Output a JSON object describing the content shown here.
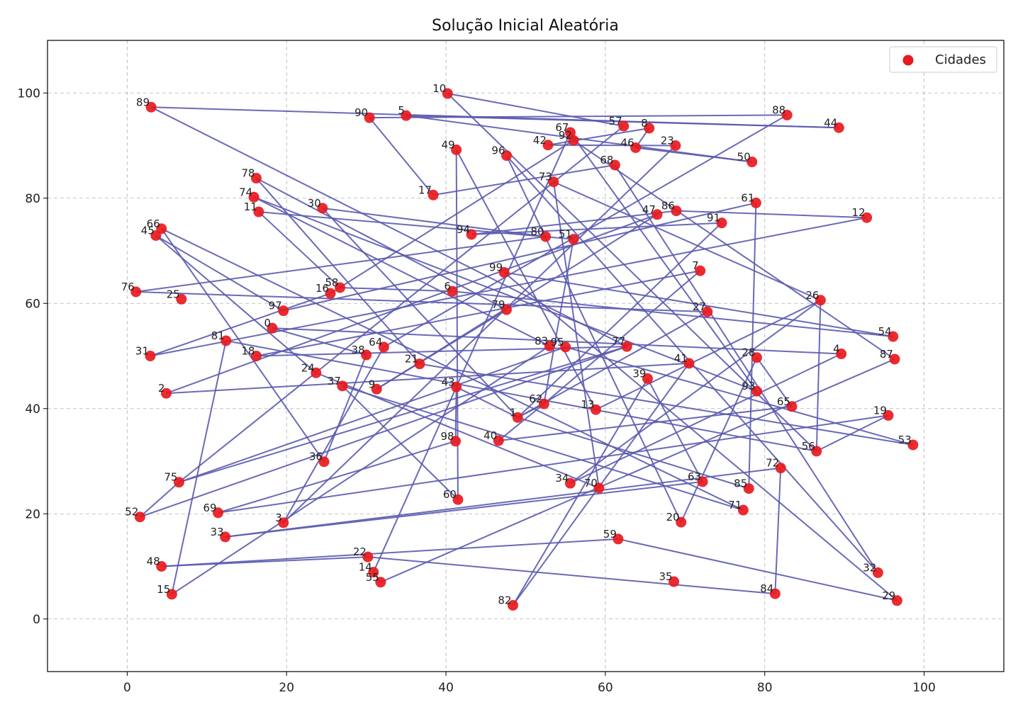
{
  "chart_data": {
    "type": "scatter",
    "title": "Solução Inicial Aleatória",
    "xlabel": "",
    "ylabel": "",
    "xlim": [
      -10,
      110
    ],
    "ylim": [
      -10,
      110
    ],
    "x_ticks": [
      "0",
      "20",
      "40",
      "60",
      "80",
      "100"
    ],
    "y_ticks": [
      "0",
      "20",
      "40",
      "60",
      "80",
      "100"
    ],
    "grid": true,
    "legend": {
      "position": "top-right",
      "entries": [
        "Cidades"
      ]
    },
    "colors": {
      "points": "#e8191e",
      "route": "#5a5aaf"
    },
    "series": [
      {
        "name": "Cidades",
        "points": [
          {
            "label": "0",
            "x": 18.2,
            "y": 55.3
          },
          {
            "label": "1",
            "x": 49.0,
            "y": 38.3
          },
          {
            "label": "2",
            "x": 4.9,
            "y": 42.9
          },
          {
            "label": "3",
            "x": 19.6,
            "y": 18.3
          },
          {
            "label": "4",
            "x": 89.6,
            "y": 50.4
          },
          {
            "label": "5",
            "x": 35.0,
            "y": 95.7
          },
          {
            "label": "6",
            "x": 40.8,
            "y": 62.3
          },
          {
            "label": "7",
            "x": 71.9,
            "y": 66.2
          },
          {
            "label": "8",
            "x": 65.5,
            "y": 93.3
          },
          {
            "label": "9",
            "x": 31.3,
            "y": 43.7
          },
          {
            "label": "10",
            "x": 40.2,
            "y": 99.9
          },
          {
            "label": "11",
            "x": 16.5,
            "y": 77.4
          },
          {
            "label": "12",
            "x": 92.8,
            "y": 76.3
          },
          {
            "label": "13",
            "x": 58.8,
            "y": 39.8
          },
          {
            "label": "14",
            "x": 30.9,
            "y": 8.9
          },
          {
            "label": "15",
            "x": 5.6,
            "y": 4.7
          },
          {
            "label": "16",
            "x": 25.5,
            "y": 61.9
          },
          {
            "label": "17",
            "x": 38.4,
            "y": 80.6
          },
          {
            "label": "18",
            "x": 16.2,
            "y": 50.0
          },
          {
            "label": "19",
            "x": 95.5,
            "y": 38.7
          },
          {
            "label": "20",
            "x": 69.5,
            "y": 18.4
          },
          {
            "label": "21",
            "x": 36.7,
            "y": 48.5
          },
          {
            "label": "22",
            "x": 30.2,
            "y": 11.8
          },
          {
            "label": "23",
            "x": 68.8,
            "y": 90.0
          },
          {
            "label": "24",
            "x": 23.7,
            "y": 46.8
          },
          {
            "label": "25",
            "x": 6.8,
            "y": 60.8
          },
          {
            "label": "26",
            "x": 87.0,
            "y": 60.6
          },
          {
            "label": "27",
            "x": 72.8,
            "y": 58.4
          },
          {
            "label": "28",
            "x": 79.0,
            "y": 49.7
          },
          {
            "label": "29",
            "x": 96.6,
            "y": 3.5
          },
          {
            "label": "30",
            "x": 24.5,
            "y": 78.1
          },
          {
            "label": "31",
            "x": 2.9,
            "y": 50.0
          },
          {
            "label": "32",
            "x": 94.2,
            "y": 8.8
          },
          {
            "label": "33",
            "x": 12.3,
            "y": 15.6
          },
          {
            "label": "34",
            "x": 55.6,
            "y": 25.8
          },
          {
            "label": "35",
            "x": 68.6,
            "y": 7.1
          },
          {
            "label": "36",
            "x": 24.7,
            "y": 29.9
          },
          {
            "label": "37",
            "x": 27.0,
            "y": 44.3
          },
          {
            "label": "38",
            "x": 30.0,
            "y": 50.2
          },
          {
            "label": "39",
            "x": 65.3,
            "y": 45.7
          },
          {
            "label": "40",
            "x": 46.6,
            "y": 33.9
          },
          {
            "label": "41",
            "x": 70.5,
            "y": 48.6
          },
          {
            "label": "42",
            "x": 52.8,
            "y": 90.1
          },
          {
            "label": "43",
            "x": 41.3,
            "y": 44.1
          },
          {
            "label": "44",
            "x": 89.3,
            "y": 93.4
          },
          {
            "label": "45",
            "x": 3.6,
            "y": 72.9
          },
          {
            "label": "46",
            "x": 63.8,
            "y": 89.6
          },
          {
            "label": "47",
            "x": 66.5,
            "y": 76.9
          },
          {
            "label": "48",
            "x": 4.3,
            "y": 10.0
          },
          {
            "label": "49",
            "x": 41.3,
            "y": 89.2
          },
          {
            "label": "50",
            "x": 78.4,
            "y": 86.9
          },
          {
            "label": "51",
            "x": 56.0,
            "y": 72.2
          },
          {
            "label": "52",
            "x": 1.6,
            "y": 19.4
          },
          {
            "label": "53",
            "x": 98.6,
            "y": 33.1
          },
          {
            "label": "54",
            "x": 96.1,
            "y": 53.7
          },
          {
            "label": "55",
            "x": 31.8,
            "y": 7.0
          },
          {
            "label": "56",
            "x": 86.5,
            "y": 31.9
          },
          {
            "label": "57",
            "x": 62.3,
            "y": 93.7
          },
          {
            "label": "58",
            "x": 26.7,
            "y": 63.0
          },
          {
            "label": "59",
            "x": 61.6,
            "y": 15.2
          },
          {
            "label": "60",
            "x": 41.5,
            "y": 22.7
          },
          {
            "label": "61",
            "x": 78.9,
            "y": 79.1
          },
          {
            "label": "62",
            "x": 52.3,
            "y": 40.9
          },
          {
            "label": "63",
            "x": 72.2,
            "y": 26.1
          },
          {
            "label": "64",
            "x": 32.2,
            "y": 51.7
          },
          {
            "label": "65",
            "x": 83.4,
            "y": 40.4
          },
          {
            "label": "66",
            "x": 4.3,
            "y": 74.2
          },
          {
            "label": "67",
            "x": 55.6,
            "y": 92.5
          },
          {
            "label": "68",
            "x": 61.2,
            "y": 86.3
          },
          {
            "label": "69",
            "x": 11.4,
            "y": 20.2
          },
          {
            "label": "70",
            "x": 59.2,
            "y": 24.9
          },
          {
            "label": "71",
            "x": 77.3,
            "y": 20.7
          },
          {
            "label": "72",
            "x": 82.0,
            "y": 28.7
          },
          {
            "label": "73",
            "x": 53.5,
            "y": 83.1
          },
          {
            "label": "74",
            "x": 15.9,
            "y": 80.2
          },
          {
            "label": "75",
            "x": 6.5,
            "y": 26.0
          },
          {
            "label": "76",
            "x": 1.1,
            "y": 62.2
          },
          {
            "label": "77",
            "x": 62.7,
            "y": 51.8
          },
          {
            "label": "78",
            "x": 16.2,
            "y": 83.8
          },
          {
            "label": "79",
            "x": 47.6,
            "y": 58.8
          },
          {
            "label": "80",
            "x": 52.5,
            "y": 72.7
          },
          {
            "label": "81",
            "x": 12.4,
            "y": 52.9
          },
          {
            "label": "82",
            "x": 48.4,
            "y": 2.6
          },
          {
            "label": "83",
            "x": 53.0,
            "y": 51.9
          },
          {
            "label": "84",
            "x": 81.3,
            "y": 4.8
          },
          {
            "label": "85",
            "x": 78.0,
            "y": 24.8
          },
          {
            "label": "86",
            "x": 68.9,
            "y": 77.6
          },
          {
            "label": "87",
            "x": 96.3,
            "y": 49.4
          },
          {
            "label": "88",
            "x": 82.8,
            "y": 95.8
          },
          {
            "label": "89",
            "x": 3.0,
            "y": 97.3
          },
          {
            "label": "90",
            "x": 30.4,
            "y": 95.3
          },
          {
            "label": "91",
            "x": 74.6,
            "y": 75.3
          },
          {
            "label": "92",
            "x": 56.0,
            "y": 91.0
          },
          {
            "label": "93",
            "x": 79.0,
            "y": 43.3
          },
          {
            "label": "94",
            "x": 43.2,
            "y": 73.1
          },
          {
            "label": "95",
            "x": 55.0,
            "y": 51.7
          },
          {
            "label": "96",
            "x": 47.6,
            "y": 88.1
          },
          {
            "label": "97",
            "x": 19.6,
            "y": 58.6
          },
          {
            "label": "98",
            "x": 41.2,
            "y": 33.8
          },
          {
            "label": "99",
            "x": 47.3,
            "y": 65.9
          }
        ]
      }
    ],
    "route": [
      89,
      44,
      5,
      50,
      46,
      8,
      42,
      23,
      3,
      64,
      88,
      90,
      17,
      68,
      32,
      96,
      20,
      28,
      65,
      40,
      62,
      51,
      11,
      58,
      6,
      54,
      99,
      29,
      59,
      48,
      22,
      84,
      72,
      33,
      63,
      39,
      82,
      41,
      2,
      47,
      9,
      79,
      78,
      21,
      53,
      95,
      75,
      57,
      10,
      56,
      81,
      15,
      83,
      74,
      93,
      67,
      14,
      55,
      87,
      92,
      16,
      31,
      12,
      86,
      94,
      91,
      1,
      27,
      76,
      80,
      30,
      1,
      85,
      61,
      97,
      45,
      24,
      70,
      73,
      26,
      13,
      49,
      60,
      37,
      71,
      66,
      36,
      38,
      0,
      4,
      34,
      26,
      56,
      19,
      69,
      98,
      43,
      1,
      62,
      7,
      18,
      77,
      52,
      75,
      77,
      89
    ]
  }
}
